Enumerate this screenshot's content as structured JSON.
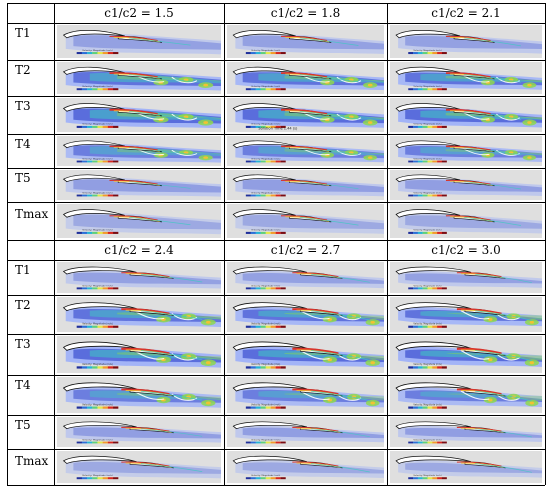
{
  "groups": [
    {
      "headers": [
        "c1/c2 = 1.5",
        "c1/c2 = 1.8",
        "c1/c2 = 2.1"
      ],
      "rows": [
        "T1",
        "T2",
        "T3",
        "T4",
        "T5",
        "Tmax"
      ]
    },
    {
      "headers": [
        "c1/c2 = 2.4",
        "c1/c2 = 2.7",
        "c1/c2 = 3.0"
      ],
      "rows": [
        "T1",
        "T2",
        "T3",
        "T4",
        "T5",
        "Tmax"
      ]
    }
  ],
  "legend": {
    "title": "Velocity: Magnitude (m/s)",
    "colors": [
      "#1f2f9a",
      "#2c6fd8",
      "#27b4d6",
      "#5fd07a",
      "#e6e84a",
      "#f39a2a",
      "#d6261f",
      "#7a0c12"
    ]
  },
  "annotations": {
    "solution_time": "Solution Time 1.44 (s)"
  },
  "colors": {
    "background": "#dfdfdf",
    "airfoil_fill": "#ffffff",
    "airfoil_edge": "#111111",
    "cool": "#3b4fd0",
    "cool_light": "#8fa6ff",
    "mid": "#3ec9c2",
    "warm": "#8ed84e",
    "hot": "#f2c232",
    "peak": "#d8342b"
  }
}
